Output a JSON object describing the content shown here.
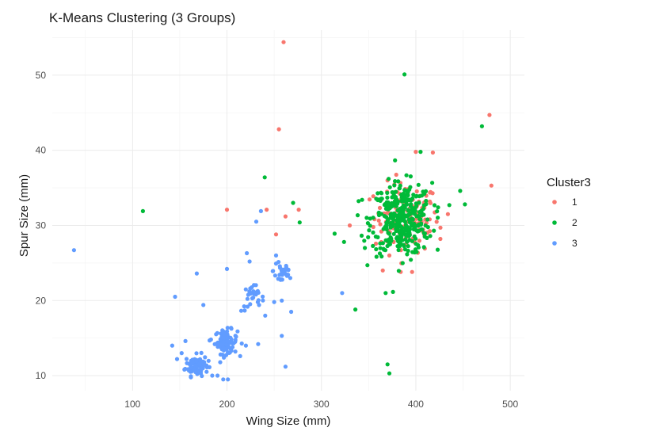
{
  "chart_data": {
    "type": "scatter",
    "title": "K-Means Clustering (3 Groups)",
    "xlabel": "Wing Size (mm)",
    "ylabel": "Spur Size (mm)",
    "xlim": [
      15,
      515
    ],
    "ylim": [
      8,
      56
    ],
    "xticks": [
      100,
      200,
      300,
      400,
      500
    ],
    "yticks": [
      10,
      20,
      30,
      40,
      50
    ],
    "grid": true,
    "legend": {
      "title": "Cluster3",
      "placement": "right",
      "entries": [
        "1",
        "2",
        "3"
      ]
    },
    "colors": {
      "1": "#F8766D",
      "2": "#00BA38",
      "3": "#619CFF"
    },
    "series": [
      {
        "name": "1",
        "color": "#F8766D",
        "outliers": [
          [
            260,
            54.4
          ],
          [
            255,
            42.8
          ],
          [
            200,
            32.1
          ],
          [
            242,
            32.1
          ],
          [
            262,
            31.2
          ],
          [
            276,
            32.1
          ],
          [
            252,
            28.8
          ],
          [
            330,
            30.0
          ],
          [
            478,
            44.7
          ],
          [
            418,
            39.7
          ],
          [
            480,
            35.3
          ],
          [
            400,
            39.8
          ],
          [
            365,
            24.0
          ],
          [
            384,
            23.8
          ],
          [
            396,
            23.8
          ],
          [
            372,
            26.0
          ],
          [
            434,
            31.5
          ],
          [
            426,
            28.2
          ]
        ],
        "clusters": [
          {
            "cx": 390,
            "cy": 31.0,
            "sx": 17,
            "sy": 2.3,
            "n": 130
          }
        ]
      },
      {
        "name": "2",
        "color": "#00BA38",
        "outliers": [
          [
            111,
            31.9
          ],
          [
            240,
            36.4
          ],
          [
            270,
            33.0
          ],
          [
            277,
            30.4
          ],
          [
            388,
            50.1
          ],
          [
            405,
            39.8
          ],
          [
            470,
            43.2
          ],
          [
            452,
            32.8
          ],
          [
            447,
            34.6
          ],
          [
            370,
            11.5
          ],
          [
            372,
            10.3
          ],
          [
            368,
            21.0
          ],
          [
            336,
            18.8
          ],
          [
            314,
            28.9
          ],
          [
            324,
            27.8
          ],
          [
            346,
            27.0
          ]
        ],
        "clusters": [
          {
            "cx": 385,
            "cy": 30.8,
            "sx": 16,
            "sy": 2.4,
            "n": 360
          }
        ]
      },
      {
        "name": "3",
        "color": "#619CFF",
        "outliers": [
          [
            38,
            26.7
          ],
          [
            145,
            20.5
          ],
          [
            142,
            14.0
          ],
          [
            168,
            23.6
          ],
          [
            200,
            24.2
          ],
          [
            175,
            19.4
          ],
          [
            196,
            9.5
          ],
          [
            201,
            9.5
          ],
          [
            190,
            10.0
          ],
          [
            231,
            30.5
          ],
          [
            236,
            31.9
          ],
          [
            221,
            26.3
          ],
          [
            224,
            25.2
          ],
          [
            252,
            26.0
          ],
          [
            267,
            23.0
          ],
          [
            262,
            11.2
          ],
          [
            258,
            15.3
          ],
          [
            233,
            14.2
          ],
          [
            322,
            21.0
          ],
          [
            268,
            18.5
          ],
          [
            156,
            14.6
          ],
          [
            152,
            13.0
          ],
          [
            183,
            14.8
          ],
          [
            214,
            12.6
          ],
          [
            220,
            14.0
          ],
          [
            250,
            19.8
          ],
          [
            234,
            19.4
          ],
          [
            258,
            20.0
          ]
        ],
        "clusters": [
          {
            "cx": 168,
            "cy": 11.4,
            "sx": 6,
            "sy": 0.7,
            "n": 90
          },
          {
            "cx": 199,
            "cy": 14.5,
            "sx": 6,
            "sy": 0.8,
            "n": 90
          },
          {
            "cx": 227,
            "cy": 20.3,
            "sx": 6,
            "sy": 0.9,
            "n": 28
          },
          {
            "cx": 259,
            "cy": 24.0,
            "sx": 5,
            "sy": 1.1,
            "n": 28
          }
        ]
      }
    ]
  }
}
